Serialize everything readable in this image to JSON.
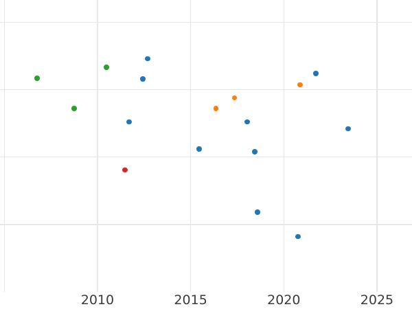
{
  "chart_data": {
    "type": "scatter",
    "title": "",
    "xlabel": "",
    "ylabel": "",
    "grid_on": true,
    "legend_position": "none",
    "y_tick_labels_visible": false,
    "xlim": [
      2004.77,
      2026.88
    ],
    "ylim": [
      0,
      4.33
    ],
    "x_gridline_years": [
      2005,
      2010,
      2015,
      2020,
      2025
    ],
    "y_gridline_values": [
      1,
      2,
      3,
      4
    ],
    "x_ticks": [
      {
        "year": 2010,
        "label": "2010"
      },
      {
        "year": 2015,
        "label": "2015"
      },
      {
        "year": 2020,
        "label": "2020"
      },
      {
        "year": 2025,
        "label": "2025"
      }
    ],
    "series": [
      {
        "name": "blue-series",
        "color": "#1f77b4",
        "points": [
          {
            "x": 2012.69,
            "y": 3.46
          },
          {
            "x": 2012.43,
            "y": 3.16
          },
          {
            "x": 2011.7,
            "y": 2.52
          },
          {
            "x": 2015.46,
            "y": 2.12
          },
          {
            "x": 2021.72,
            "y": 3.24
          },
          {
            "x": 2018.03,
            "y": 2.52
          },
          {
            "x": 2023.45,
            "y": 2.42
          },
          {
            "x": 2018.44,
            "y": 2.08
          },
          {
            "x": 2018.59,
            "y": 1.18
          },
          {
            "x": 2020.76,
            "y": 0.82
          }
        ]
      },
      {
        "name": "orange-series",
        "color": "#ff7f0e",
        "points": [
          {
            "x": 2020.87,
            "y": 3.07
          },
          {
            "x": 2017.36,
            "y": 2.88
          },
          {
            "x": 2016.36,
            "y": 2.72
          }
        ]
      },
      {
        "name": "green-series",
        "color": "#2ca02c",
        "points": [
          {
            "x": 2006.76,
            "y": 3.17
          },
          {
            "x": 2010.48,
            "y": 3.33
          },
          {
            "x": 2008.75,
            "y": 2.72
          }
        ]
      },
      {
        "name": "red-series",
        "color": "#d62728",
        "points": [
          {
            "x": 2011.47,
            "y": 1.81
          }
        ]
      }
    ],
    "marker_diameter_px": 7.5,
    "colors": {
      "background": "#ffffff",
      "gridline": "#e7e7e7",
      "tick_label": "#3b3b3b"
    }
  }
}
